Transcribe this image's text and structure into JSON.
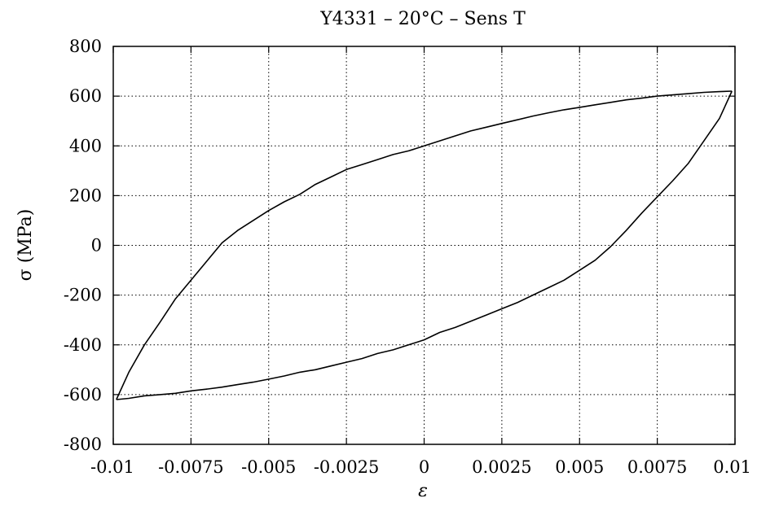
{
  "chart_data": {
    "type": "line",
    "title": "Y4331 – 20°C – Sens T",
    "xlabel": "ε",
    "ylabel": "σ (MPa)",
    "xlim": [
      -0.01,
      0.01
    ],
    "ylim": [
      -800,
      800
    ],
    "grid": true,
    "x_ticks": [
      "-0.01",
      "-0.0075",
      "-0.005",
      "-0.0025",
      "0",
      "0.0025",
      "0.005",
      "0.0075",
      "0.01"
    ],
    "y_ticks": [
      "800",
      "600",
      "400",
      "200",
      "0",
      "-200",
      "-400",
      "-600",
      "-800"
    ],
    "series": [
      {
        "x": [
          -0.0099,
          -0.0095,
          -0.009,
          -0.0085,
          -0.008,
          -0.0075,
          -0.007,
          -0.0065,
          -0.006,
          -0.0055,
          -0.005,
          -0.0045,
          -0.004,
          -0.0035,
          -0.003,
          -0.0025,
          -0.002,
          -0.0015,
          -0.001,
          -0.0005,
          0,
          0.0005,
          0.001,
          0.0015,
          0.002,
          0.0025,
          0.003,
          0.0035,
          0.004,
          0.0045,
          0.005,
          0.0055,
          0.006,
          0.0065,
          0.007,
          0.0075,
          0.008,
          0.0085,
          0.009,
          0.0095,
          0.0099
        ],
        "y": [
          -620,
          -510,
          -400,
          -310,
          -215,
          -140,
          -65,
          10,
          60,
          100,
          140,
          175,
          205,
          245,
          275,
          305,
          325,
          345,
          365,
          380,
          400,
          420,
          440,
          460,
          475,
          490,
          505,
          520,
          533,
          545,
          555,
          565,
          575,
          585,
          592,
          600,
          605,
          610,
          615,
          618,
          620
        ]
      },
      {
        "x": [
          0.0099,
          0.0095,
          0.009,
          0.0085,
          0.008,
          0.0075,
          0.007,
          0.0065,
          0.006,
          0.0055,
          0.005,
          0.0045,
          0.004,
          0.0035,
          0.003,
          0.0025,
          0.002,
          0.0015,
          0.001,
          0.0005,
          0,
          -0.0005,
          -0.001,
          -0.0015,
          -0.002,
          -0.0025,
          -0.003,
          -0.0035,
          -0.004,
          -0.0045,
          -0.005,
          -0.0055,
          -0.006,
          -0.0065,
          -0.007,
          -0.0075,
          -0.008,
          -0.0085,
          -0.009,
          -0.0095,
          -0.0099
        ],
        "y": [
          620,
          510,
          420,
          330,
          260,
          195,
          130,
          60,
          -5,
          -60,
          -100,
          -140,
          -170,
          -200,
          -230,
          -255,
          -280,
          -305,
          -330,
          -350,
          -380,
          -400,
          -420,
          -435,
          -455,
          -470,
          -485,
          -500,
          -510,
          -525,
          -538,
          -550,
          -560,
          -570,
          -578,
          -585,
          -595,
          -600,
          -605,
          -615,
          -620
        ]
      }
    ]
  }
}
